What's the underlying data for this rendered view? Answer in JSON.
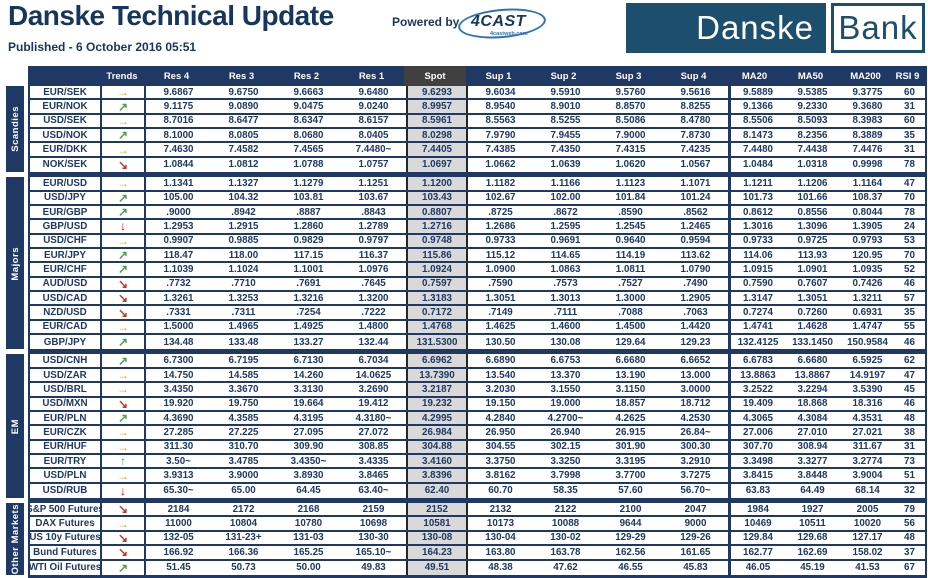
{
  "header": {
    "title": "Danske Technical Update",
    "published": "Published - 6 October 2016 05:51",
    "powered_by": "Powered by",
    "fourcast": "4CAST",
    "fourcast_sub": "4castweb.com"
  },
  "logo": {
    "left": "Danske",
    "right": "Bank"
  },
  "colors": {
    "navy": "#1F3864",
    "brand_blue": "#1D4E6E",
    "spot_bg": "#D9D9D9",
    "spot_header_bg": "#404040",
    "fourcast_blue": "#2E75B6",
    "trend": {
      "right": "#F0A500",
      "up_right": "#4E9E50",
      "down_right": "#C0392B",
      "up": "#4E9E50",
      "down": "#C00000"
    }
  },
  "trend_glyphs": {
    "right": "→",
    "up_right": "↗",
    "down_right": "↘",
    "up": "↑",
    "down": "↓"
  },
  "table": {
    "columns": [
      "Trends",
      "Res 4",
      "Res 3",
      "Res 2",
      "Res 1",
      "Spot",
      "Sup 1",
      "Sup 2",
      "Sup 3",
      "Sup 4",
      "MA20",
      "MA50",
      "MA200",
      "RSI 9"
    ],
    "sections": [
      {
        "label": "Scandies",
        "rows": [
          {
            "pair": "EUR/SEK",
            "trend": "right",
            "values": [
              "9.6867",
              "9.6750",
              "9.6663",
              "9.6480",
              "9.6293",
              "9.6034",
              "9.5910",
              "9.5760",
              "9.5616",
              "9.5889",
              "9.5385",
              "9.3775",
              "60"
            ]
          },
          {
            "pair": "EUR/NOK",
            "trend": "up_right",
            "values": [
              "9.1175",
              "9.0890",
              "9.0475",
              "9.0240",
              "8.9957",
              "8.9540",
              "8.9010",
              "8.8570",
              "8.8255",
              "9.1366",
              "9.2330",
              "9.3680",
              "31"
            ]
          },
          {
            "pair": "USD/SEK",
            "trend": "right",
            "values": [
              "8.7016",
              "8.6477",
              "8.6347",
              "8.6157",
              "8.5961",
              "8.5563",
              "8.5255",
              "8.5086",
              "8.4780",
              "8.5506",
              "8.5093",
              "8.3983",
              "60"
            ]
          },
          {
            "pair": "USD/NOK",
            "trend": "up_right",
            "values": [
              "8.1000",
              "8.0805",
              "8.0680",
              "8.0405",
              "8.0298",
              "7.9790",
              "7.9455",
              "7.9000",
              "7.8730",
              "8.1473",
              "8.2356",
              "8.3889",
              "35"
            ]
          },
          {
            "pair": "EUR/DKK",
            "trend": "right",
            "values": [
              "7.4630",
              "7.4582",
              "7.4565",
              "7.4480~",
              "7.4405",
              "7.4385",
              "7.4350",
              "7.4315",
              "7.4235",
              "7.4480",
              "7.4438",
              "7.4476",
              "31"
            ]
          },
          {
            "pair": "NOK/SEK",
            "trend": "down_right",
            "values": [
              "1.0844",
              "1.0812",
              "1.0788",
              "1.0757",
              "1.0697",
              "1.0662",
              "1.0639",
              "1.0620",
              "1.0567",
              "1.0484",
              "1.0318",
              "0.9998",
              "78"
            ]
          }
        ]
      },
      {
        "label": "Majors",
        "rows": [
          {
            "pair": "EUR/USD",
            "trend": "right",
            "values": [
              "1.1341",
              "1.1327",
              "1.1279",
              "1.1251",
              "1.1200",
              "1.1182",
              "1.1166",
              "1.1123",
              "1.1071",
              "1.1211",
              "1.1206",
              "1.1164",
              "47"
            ]
          },
          {
            "pair": "USD/JPY",
            "trend": "up_right",
            "values": [
              "105.00",
              "104.32",
              "103.81",
              "103.67",
              "103.43",
              "102.67",
              "102.00",
              "101.84",
              "101.24",
              "101.73",
              "101.66",
              "108.37",
              "70"
            ]
          },
          {
            "pair": "EUR/GBP",
            "trend": "up_right",
            "values": [
              ".9000",
              ".8942",
              ".8887",
              ".8843",
              "0.8807",
              ".8725",
              ".8672",
              ".8590",
              ".8562",
              "0.8612",
              "0.8556",
              "0.8044",
              "78"
            ]
          },
          {
            "pair": "GBP/USD",
            "trend": "down",
            "values": [
              "1.2953",
              "1.2915",
              "1.2860",
              "1.2789",
              "1.2716",
              "1.2686",
              "1.2595",
              "1.2545",
              "1.2465",
              "1.3016",
              "1.3096",
              "1.3905",
              "24"
            ]
          },
          {
            "pair": "USD/CHF",
            "trend": "right",
            "values": [
              "0.9907",
              "0.9885",
              "0.9829",
              "0.9797",
              "0.9748",
              "0.9733",
              "0.9691",
              "0.9640",
              "0.9594",
              "0.9733",
              "0.9725",
              "0.9793",
              "53"
            ]
          },
          {
            "pair": "EUR/JPY",
            "trend": "up_right",
            "values": [
              "118.47",
              "118.00",
              "117.15",
              "116.37",
              "115.86",
              "115.12",
              "114.65",
              "114.19",
              "113.62",
              "114.06",
              "113.93",
              "120.95",
              "70"
            ]
          },
          {
            "pair": "EUR/CHF",
            "trend": "up_right",
            "values": [
              "1.1039",
              "1.1024",
              "1.1001",
              "1.0976",
              "1.0924",
              "1.0900",
              "1.0863",
              "1.0811",
              "1.0790",
              "1.0915",
              "1.0901",
              "1.0935",
              "52"
            ]
          },
          {
            "pair": "AUD/USD",
            "trend": "down_right",
            "values": [
              ".7732",
              ".7710",
              ".7691",
              ".7645",
              "0.7597",
              ".7590",
              ".7573",
              ".7527",
              ".7490",
              "0.7590",
              "0.7607",
              "0.7426",
              "46"
            ]
          },
          {
            "pair": "USD/CAD",
            "trend": "down_right",
            "values": [
              "1.3261",
              "1.3253",
              "1.3216",
              "1.3200",
              "1.3183",
              "1.3051",
              "1.3013",
              "1.3000",
              "1.2905",
              "1.3147",
              "1.3051",
              "1.3211",
              "57"
            ]
          },
          {
            "pair": "NZD/USD",
            "trend": "down_right",
            "values": [
              ".7331",
              ".7311",
              ".7254",
              ".7222",
              "0.7172",
              ".7149",
              ".7111",
              ".7088",
              ".7063",
              "0.7274",
              "0.7260",
              "0.6931",
              "35"
            ]
          },
          {
            "pair": "EUR/CAD",
            "trend": "right",
            "values": [
              "1.5000",
              "1.4965",
              "1.4925",
              "1.4800",
              "1.4768",
              "1.4625",
              "1.4600",
              "1.4500",
              "1.4420",
              "1.4741",
              "1.4628",
              "1.4747",
              "55"
            ]
          },
          {
            "pair": "GBP/JPY",
            "trend": "up_right",
            "values": [
              "134.48",
              "133.48",
              "133.27",
              "132.44",
              "131.5300",
              "130.50",
              "130.08",
              "129.64",
              "129.23",
              "132.4125",
              "133.1450",
              "150.9584",
              "46"
            ]
          }
        ]
      },
      {
        "label": "EM",
        "rows": [
          {
            "pair": "USD/CNH",
            "trend": "up_right",
            "values": [
              "6.7300",
              "6.7195",
              "6.7130",
              "6.7034",
              "6.6962",
              "6.6890",
              "6.6753",
              "6.6680",
              "6.6652",
              "6.6783",
              "6.6680",
              "6.5925",
              "62"
            ]
          },
          {
            "pair": "USD/ZAR",
            "trend": "right",
            "values": [
              "14.750",
              "14.585",
              "14.260",
              "14.0625",
              "13.7390",
              "13.540",
              "13.370",
              "13.190",
              "13.000",
              "13.8863",
              "13.8867",
              "14.9197",
              "47"
            ]
          },
          {
            "pair": "USD/BRL",
            "trend": "right",
            "values": [
              "3.4350",
              "3.3670",
              "3.3130",
              "3.2690",
              "3.2187",
              "3.2030",
              "3.1550",
              "3.1150",
              "3.0000",
              "3.2522",
              "3.2294",
              "3.5390",
              "45"
            ]
          },
          {
            "pair": "USD/MXN",
            "trend": "down_right",
            "values": [
              "19.920",
              "19.750",
              "19.664",
              "19.412",
              "19.232",
              "19.150",
              "19.000",
              "18.857",
              "18.712",
              "19.409",
              "18.868",
              "18.316",
              "46"
            ]
          },
          {
            "pair": "EUR/PLN",
            "trend": "up_right",
            "values": [
              "4.3690",
              "4.3585",
              "4.3195",
              "4.3180~",
              "4.2995",
              "4.2840",
              "4.2700~",
              "4.2625",
              "4.2530",
              "4.3065",
              "4.3084",
              "4.3531",
              "48"
            ]
          },
          {
            "pair": "EUR/CZK",
            "trend": "right",
            "values": [
              "27.285",
              "27.225",
              "27.095",
              "27.072",
              "26.984",
              "26.950",
              "26.940",
              "26.915",
              "26.84~",
              "27.006",
              "27.010",
              "27.021",
              "38"
            ]
          },
          {
            "pair": "EUR/HUF",
            "trend": "right",
            "values": [
              "311.30",
              "310.70",
              "309.90",
              "308.85",
              "304.88",
              "304.55",
              "302.15",
              "301.90",
              "300.30",
              "307.70",
              "308.94",
              "311.67",
              "31"
            ]
          },
          {
            "pair": "EUR/TRY",
            "trend": "up",
            "values": [
              "3.50~",
              "3.4785",
              "3.4350~",
              "3.4335",
              "3.4160",
              "3.3750",
              "3.3250",
              "3.3195",
              "3.2910",
              "3.3498",
              "3.3277",
              "3.2774",
              "73"
            ]
          },
          {
            "pair": "USD/PLN",
            "trend": "right",
            "values": [
              "3.9313",
              "3.9000",
              "3.8930",
              "3.8465",
              "3.8396",
              "3.8162",
              "3.7998",
              "3.7700",
              "3.7275",
              "3.8415",
              "3.8448",
              "3.9004",
              "51"
            ]
          },
          {
            "pair": "USD/RUB",
            "trend": "down",
            "values": [
              "65.30~",
              "65.00",
              "64.45",
              "63.40~",
              "62.40",
              "60.70",
              "58.35",
              "57.60",
              "56.70~",
              "63.83",
              "64.49",
              "68.14",
              "32"
            ]
          }
        ]
      },
      {
        "label": "Other Markets",
        "rows": [
          {
            "pair": "S&P 500 Futures",
            "trend": "down_right",
            "values": [
              "2184",
              "2172",
              "2168",
              "2159",
              "2152",
              "2132",
              "2122",
              "2100",
              "2047",
              "1984",
              "1927",
              "2005",
              "79"
            ]
          },
          {
            "pair": "DAX Futures",
            "trend": "right",
            "values": [
              "11000",
              "10804",
              "10780",
              "10698",
              "10581",
              "10173",
              "10088",
              "9644",
              "9000",
              "10469",
              "10511",
              "10020",
              "56"
            ]
          },
          {
            "pair": "US 10y Futures",
            "trend": "down_right",
            "values": [
              "132-05",
              "131-23+",
              "131-03",
              "130-30",
              "130-08",
              "130-04",
              "130-02",
              "129-29",
              "129-26",
              "129.84",
              "129.68",
              "127.17",
              "48"
            ]
          },
          {
            "pair": "Bund Futures",
            "trend": "down_right",
            "values": [
              "166.92",
              "166.36",
              "165.25",
              "165.10~",
              "164.23",
              "163.80",
              "163.78",
              "162.56",
              "161.65",
              "162.77",
              "162.69",
              "158.02",
              "37"
            ]
          },
          {
            "pair": "WTI Oil Futures",
            "trend": "up_right",
            "values": [
              "51.45",
              "50.73",
              "50.00",
              "49.83",
              "49.51",
              "48.38",
              "47.62",
              "46.55",
              "45.83",
              "46.05",
              "45.19",
              "41.53",
              "67"
            ]
          }
        ]
      }
    ]
  }
}
